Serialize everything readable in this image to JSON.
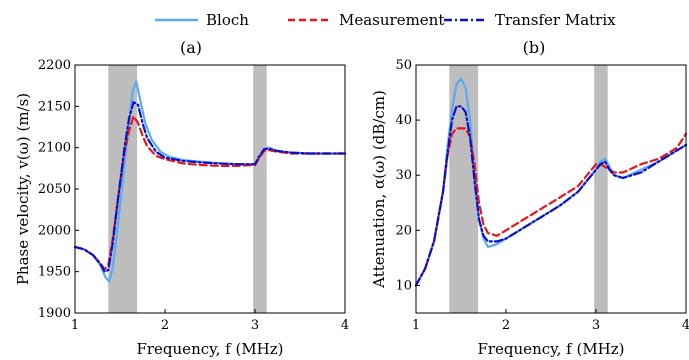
{
  "legend": {
    "items": [
      {
        "label": "Bloch",
        "color": "#5aaaf0",
        "dash": "solid"
      },
      {
        "label": "Measurement",
        "color": "#e8151b",
        "dash": "dashed"
      },
      {
        "label": "Transfer Matrix",
        "color": "#0b10c8",
        "dash": "dashdot"
      }
    ]
  },
  "chart_data": [
    {
      "type": "line",
      "title": "(a)",
      "xlabel": "Frequency, f (MHz)",
      "ylabel": "Phase velocity, v(ω) (m/s)",
      "xlim": [
        1,
        4
      ],
      "ylim": [
        1900,
        2200
      ],
      "xticks": [
        1,
        2,
        3,
        4
      ],
      "yticks": [
        1900,
        1950,
        2000,
        2050,
        2100,
        2150,
        2200
      ],
      "shaded_bands": [
        [
          1.37,
          1.69
        ],
        [
          2.98,
          3.13
        ]
      ],
      "grid": false,
      "series": [
        {
          "name": "Bloch",
          "color": "#5aaaf0",
          "dash": "solid",
          "x": [
            1,
            1.1,
            1.2,
            1.28,
            1.34,
            1.38,
            1.42,
            1.48,
            1.55,
            1.6,
            1.64,
            1.68,
            1.72,
            1.78,
            1.85,
            1.95,
            2.05,
            2.2,
            2.4,
            2.6,
            2.8,
            3.0,
            3.05,
            3.1,
            3.15,
            3.25,
            3.4,
            3.6,
            3.8,
            4.0
          ],
          "y": [
            1980,
            1977,
            1970,
            1958,
            1943,
            1938,
            1955,
            2010,
            2080,
            2130,
            2168,
            2180,
            2160,
            2130,
            2110,
            2095,
            2089,
            2085,
            2083,
            2081,
            2080,
            2080,
            2090,
            2098,
            2100,
            2096,
            2094,
            2093,
            2093,
            2093
          ]
        },
        {
          "name": "Measurement",
          "color": "#e8151b",
          "dash": "dashed",
          "x": [
            1,
            1.1,
            1.2,
            1.28,
            1.33,
            1.37,
            1.42,
            1.48,
            1.55,
            1.6,
            1.65,
            1.7,
            1.75,
            1.8,
            1.9,
            2.0,
            2.2,
            2.4,
            2.6,
            2.8,
            3.0,
            3.05,
            3.1,
            3.15,
            3.25,
            3.4,
            3.6,
            3.8,
            4.0
          ],
          "y": [
            1980,
            1977,
            1970,
            1960,
            1953,
            1958,
            1990,
            2040,
            2095,
            2120,
            2138,
            2130,
            2115,
            2102,
            2090,
            2086,
            2081,
            2079,
            2078,
            2078,
            2079,
            2088,
            2096,
            2097,
            2095,
            2093,
            2093,
            2093,
            2093
          ]
        },
        {
          "name": "Transfer Matrix",
          "color": "#0b10c8",
          "dash": "dashdot",
          "x": [
            1,
            1.1,
            1.2,
            1.28,
            1.33,
            1.37,
            1.42,
            1.48,
            1.55,
            1.6,
            1.65,
            1.7,
            1.75,
            1.8,
            1.9,
            2.0,
            2.2,
            2.4,
            2.6,
            2.8,
            3.0,
            3.05,
            3.1,
            3.15,
            3.25,
            3.4,
            3.6,
            3.8,
            4.0
          ],
          "y": [
            1980,
            1977,
            1970,
            1960,
            1950,
            1952,
            1985,
            2040,
            2100,
            2135,
            2155,
            2152,
            2130,
            2112,
            2095,
            2088,
            2084,
            2082,
            2081,
            2080,
            2080,
            2090,
            2098,
            2099,
            2096,
            2094,
            2093,
            2093,
            2093
          ]
        }
      ]
    },
    {
      "type": "line",
      "title": "(b)",
      "xlabel": "Frequency, f (MHz)",
      "ylabel": "Attenuation, α(ω) (dB/cm)",
      "xlim": [
        1,
        4
      ],
      "ylim": [
        5,
        50
      ],
      "xticks": [
        1,
        2,
        3,
        4
      ],
      "yticks": [
        10,
        20,
        30,
        40,
        50
      ],
      "shaded_bands": [
        [
          1.37,
          1.69
        ],
        [
          2.98,
          3.13
        ]
      ],
      "grid": false,
      "series": [
        {
          "name": "Bloch",
          "color": "#5aaaf0",
          "dash": "solid",
          "x": [
            1,
            1.1,
            1.2,
            1.3,
            1.35,
            1.4,
            1.45,
            1.5,
            1.55,
            1.6,
            1.65,
            1.7,
            1.75,
            1.8,
            1.9,
            2.0,
            2.2,
            2.4,
            2.6,
            2.8,
            2.9,
            3.0,
            3.05,
            3.1,
            3.15,
            3.2,
            3.3,
            3.5,
            3.7,
            4.0
          ],
          "y": [
            10,
            13,
            18,
            27,
            35,
            42,
            46.5,
            47.5,
            46,
            40,
            30,
            22,
            18.5,
            17,
            17.5,
            18.5,
            20.5,
            22.5,
            24.5,
            27,
            29,
            31,
            32.5,
            33,
            31.5,
            30,
            29.5,
            31,
            32.5,
            35.5
          ]
        },
        {
          "name": "Measurement",
          "color": "#e8151b",
          "dash": "dashed",
          "x": [
            1,
            1.1,
            1.2,
            1.3,
            1.35,
            1.4,
            1.45,
            1.5,
            1.55,
            1.6,
            1.65,
            1.7,
            1.75,
            1.8,
            1.9,
            2.0,
            2.2,
            2.4,
            2.6,
            2.8,
            2.9,
            3.0,
            3.05,
            3.1,
            3.15,
            3.2,
            3.3,
            3.5,
            3.7,
            3.9,
            4.0
          ],
          "y": [
            10,
            13,
            18,
            27,
            33.5,
            37.5,
            38.5,
            38.5,
            38.5,
            37,
            32,
            25,
            21,
            19.5,
            19,
            20,
            22,
            24,
            26,
            28,
            30,
            32,
            32,
            31.5,
            31,
            30.5,
            30.5,
            32,
            33,
            35,
            37.5
          ]
        },
        {
          "name": "Transfer Matrix",
          "color": "#0b10c8",
          "dash": "dashdot",
          "x": [
            1,
            1.1,
            1.2,
            1.3,
            1.35,
            1.4,
            1.45,
            1.5,
            1.55,
            1.6,
            1.65,
            1.7,
            1.75,
            1.8,
            1.9,
            2.0,
            2.2,
            2.4,
            2.6,
            2.8,
            2.9,
            3.0,
            3.05,
            3.1,
            3.15,
            3.2,
            3.3,
            3.5,
            3.7,
            4.0
          ],
          "y": [
            10,
            13,
            18,
            27,
            34,
            40,
            42.5,
            42.5,
            41.5,
            37,
            29,
            22,
            19,
            18,
            18,
            18.5,
            20.5,
            22.5,
            24.5,
            27,
            29,
            31,
            32,
            32.5,
            31,
            30,
            29.5,
            30.5,
            32.5,
            35.5
          ]
        }
      ]
    }
  ]
}
